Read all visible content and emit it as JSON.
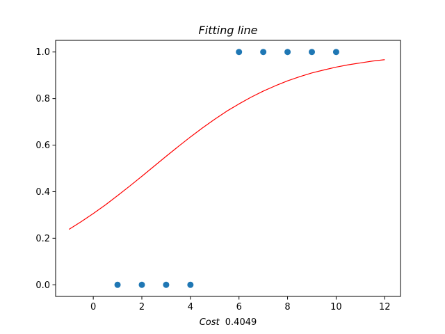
{
  "chart_data": {
    "type": "scatter",
    "title": "Fitting line",
    "xlabel_italic": "Cost",
    "xlabel_value": "0.4049",
    "ylabel": "",
    "xlim": [
      -1.55,
      12.65
    ],
    "ylim": [
      -0.05,
      1.05
    ],
    "xticks": [
      0,
      2,
      4,
      6,
      8,
      10,
      12
    ],
    "yticks": [
      0.0,
      0.2,
      0.4,
      0.6,
      0.8,
      1.0
    ],
    "grid": false,
    "series": [
      {
        "type": "scatter",
        "color": "#1f77b4",
        "points": [
          {
            "x": 1,
            "y": 0
          },
          {
            "x": 2,
            "y": 0
          },
          {
            "x": 3,
            "y": 0
          },
          {
            "x": 4,
            "y": 0
          },
          {
            "x": 6,
            "y": 1
          },
          {
            "x": 7,
            "y": 1
          },
          {
            "x": 8,
            "y": 1
          },
          {
            "x": 9,
            "y": 1
          },
          {
            "x": 10,
            "y": 1
          }
        ]
      },
      {
        "type": "line",
        "color": "#ff0000",
        "x": [
          -1,
          -0.5,
          0,
          0.5,
          1,
          1.5,
          2,
          2.5,
          3,
          3.5,
          4,
          4.5,
          5,
          5.5,
          6,
          6.5,
          7,
          7.5,
          8,
          8.5,
          9,
          9.5,
          10,
          10.5,
          11,
          11.5,
          12
        ],
        "y": [
          0.238,
          0.271,
          0.306,
          0.343,
          0.383,
          0.424,
          0.466,
          0.509,
          0.552,
          0.594,
          0.635,
          0.674,
          0.711,
          0.746,
          0.777,
          0.806,
          0.832,
          0.855,
          0.876,
          0.894,
          0.91,
          0.923,
          0.935,
          0.945,
          0.953,
          0.961,
          0.967
        ]
      }
    ]
  }
}
